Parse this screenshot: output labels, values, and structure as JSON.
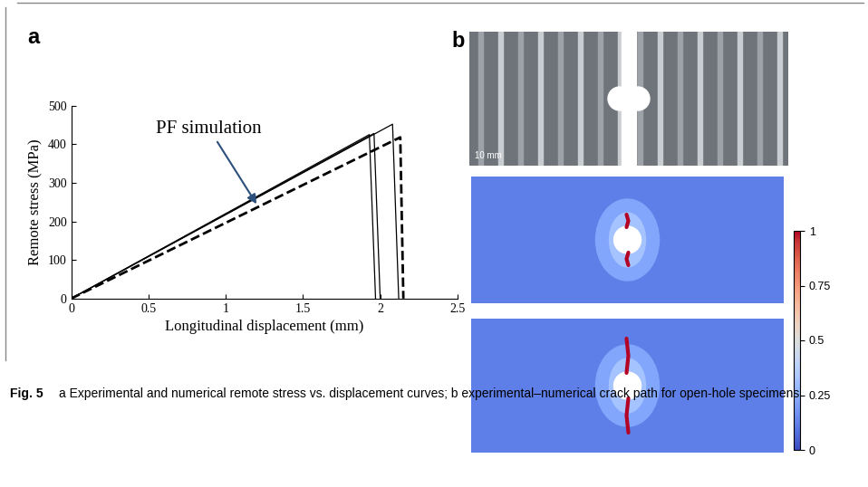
{
  "figure": {
    "caption_label": "Fig. 5",
    "caption": "a Experimental and numerical remote stress vs. displacement curves; b experimental–numerical crack path for open-hole specimens"
  },
  "chart_data": {
    "type": "line",
    "panel_label": "a",
    "x_label": "Longitudinal displacement (mm)",
    "y_label": "Remote stress (MPa)",
    "xlim": [
      0,
      2.5
    ],
    "xticks": [
      0,
      0.5,
      1,
      1.5,
      2,
      2.5
    ],
    "ylim": [
      0,
      500
    ],
    "yticks": [
      0,
      100,
      200,
      300,
      400,
      500
    ],
    "annotations": [
      {
        "text": "PF simulation",
        "x": 1.2,
        "y": 245
      }
    ],
    "series": [
      {
        "color": "#000000",
        "line_style": "solid",
        "x": [
          0,
          1.93,
          1.97
        ],
        "values": [
          0,
          425,
          0
        ]
      },
      {
        "color": "#000000",
        "line_style": "solid",
        "x": [
          0,
          1.96,
          2.0
        ],
        "values": [
          0,
          428,
          0
        ]
      },
      {
        "color": "#000000",
        "line_style": "solid",
        "x": [
          0,
          2.08,
          2.12
        ],
        "values": [
          0,
          452,
          0
        ]
      },
      {
        "color": "#000000",
        "line_style": "dashed",
        "x": [
          0,
          2.13,
          2.15
        ],
        "values": [
          0,
          418,
          0
        ]
      }
    ]
  },
  "panel_b": {
    "panel_label": "b",
    "photo": {
      "scale_bar": "10 mm"
    },
    "colorbar": {
      "range": [
        0,
        1
      ],
      "ticks": [
        0,
        0.25,
        0.5,
        0.75,
        1
      ]
    }
  }
}
